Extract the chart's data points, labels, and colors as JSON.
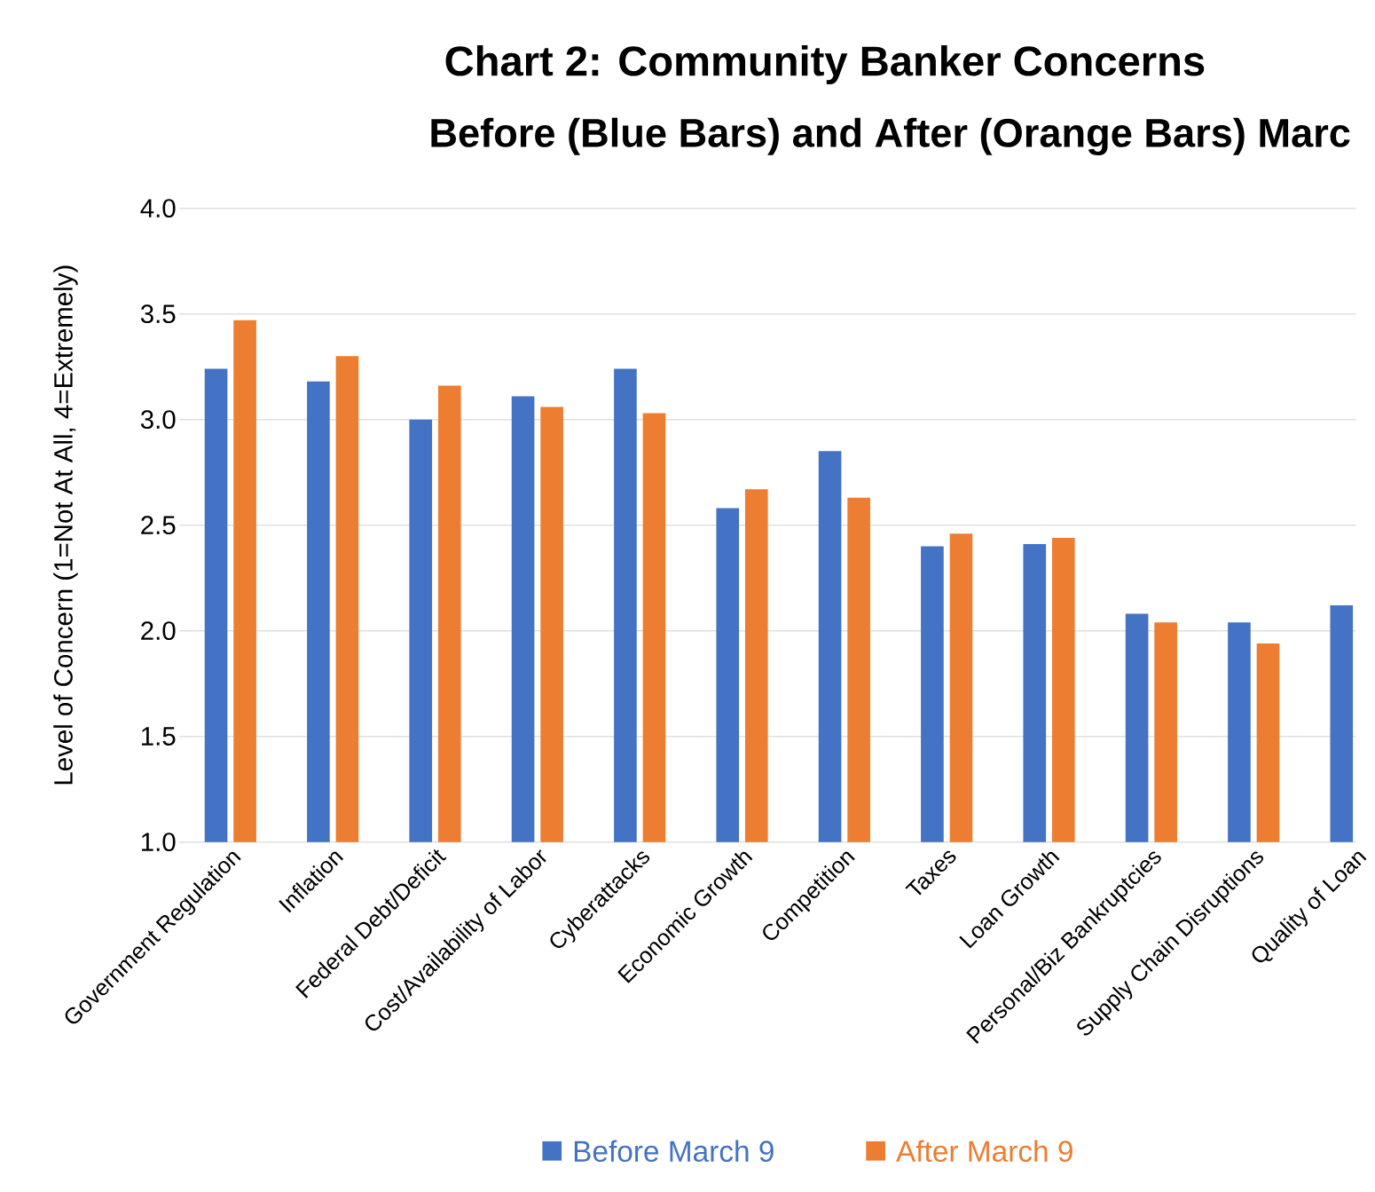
{
  "chart_data": {
    "type": "bar",
    "title": "Chart 2: Community Banker Concerns",
    "subtitle": "Before (Blue Bars) and After (Orange Bars) Marc",
    "ylabel": "Level of Concern (1=Not At All, 4=Extremely)",
    "categories": [
      "Government Regulation",
      "Inflation",
      "Federal Debt/Deficit",
      "Cost/Availability of Labor",
      "Cyberattacks",
      "Economic Growth",
      "Competition",
      "Taxes",
      "Loan Growth",
      "Personal/Biz Bankruptcies",
      "Supply Chain Disruptions",
      "Quality of Loan"
    ],
    "series": [
      {
        "name": "Before March 9",
        "color": "#4472c4",
        "values": [
          3.24,
          3.18,
          3.0,
          3.11,
          3.24,
          2.58,
          2.85,
          2.4,
          2.41,
          2.08,
          2.04,
          2.12
        ]
      },
      {
        "name": "After March 9",
        "color": "#ed7d31",
        "values": [
          3.47,
          3.3,
          3.16,
          3.06,
          3.03,
          2.67,
          2.63,
          2.46,
          2.44,
          2.04,
          1.94,
          null
        ]
      }
    ],
    "ylim": [
      1.0,
      4.0
    ],
    "yticks": [
      {
        "value": 1.0,
        "label": "1.0"
      },
      {
        "value": 1.5,
        "label": "1.5"
      },
      {
        "value": 2.0,
        "label": "2.0"
      },
      {
        "value": 2.5,
        "label": "2.5"
      },
      {
        "value": 3.0,
        "label": "3.0"
      },
      {
        "value": 3.5,
        "label": "3.5"
      },
      {
        "value": 4.0,
        "label": "4.0"
      }
    ],
    "grid": "y",
    "legend": "bottom"
  }
}
